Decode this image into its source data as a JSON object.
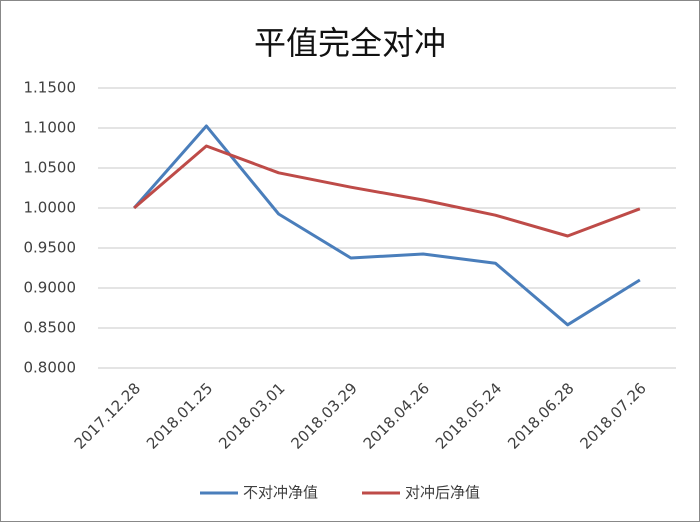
{
  "chart_data": {
    "type": "line",
    "title": "平值完全对冲",
    "categories": [
      "2017.12.28",
      "2018.01.25",
      "2018.03.01",
      "2018.03.29",
      "2018.04.26",
      "2018.05.24",
      "2018.06.28",
      "2018.07.26"
    ],
    "series": [
      {
        "name": "不对冲净值",
        "color": "#4a7ebb",
        "values": [
          1.0,
          1.1025,
          0.9925,
          0.9375,
          0.9425,
          0.931,
          0.854,
          0.91
        ]
      },
      {
        "name": "对冲后净值",
        "color": "#be4b48",
        "values": [
          1.0,
          1.0775,
          1.044,
          1.026,
          1.01,
          0.991,
          0.965,
          0.999
        ]
      }
    ],
    "ylim": [
      0.8,
      1.15
    ],
    "yticks": [
      {
        "value": 0.8,
        "label": "0.8000"
      },
      {
        "value": 0.85,
        "label": "0.8500"
      },
      {
        "value": 0.9,
        "label": "0.9000"
      },
      {
        "value": 0.95,
        "label": "0.9500"
      },
      {
        "value": 1.0,
        "label": "1.0000"
      },
      {
        "value": 1.05,
        "label": "1.0500"
      },
      {
        "value": 1.1,
        "label": "1.1000"
      },
      {
        "value": 1.15,
        "label": "1.1500"
      }
    ],
    "grid": true,
    "legend": "bottom"
  }
}
